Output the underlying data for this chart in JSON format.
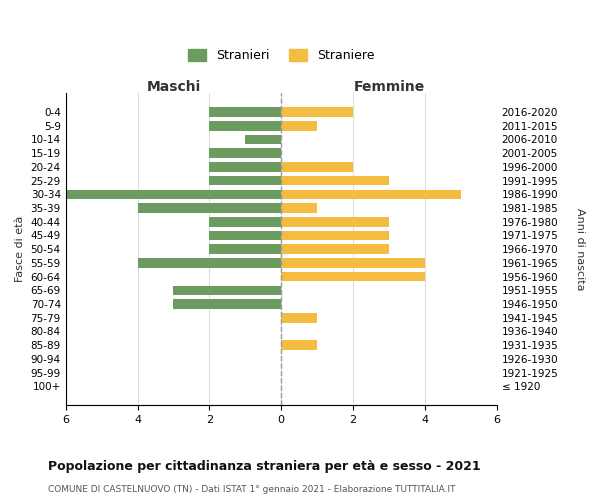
{
  "age_groups": [
    "100+",
    "95-99",
    "90-94",
    "85-89",
    "80-84",
    "75-79",
    "70-74",
    "65-69",
    "60-64",
    "55-59",
    "50-54",
    "45-49",
    "40-44",
    "35-39",
    "30-34",
    "25-29",
    "20-24",
    "15-19",
    "10-14",
    "5-9",
    "0-4"
  ],
  "birth_years": [
    "≤ 1920",
    "1921-1925",
    "1926-1930",
    "1931-1935",
    "1936-1940",
    "1941-1945",
    "1946-1950",
    "1951-1955",
    "1956-1960",
    "1961-1965",
    "1966-1970",
    "1971-1975",
    "1976-1980",
    "1981-1985",
    "1986-1990",
    "1991-1995",
    "1996-2000",
    "2001-2005",
    "2006-2010",
    "2011-2015",
    "2016-2020"
  ],
  "maschi": [
    0,
    0,
    0,
    0,
    0,
    0,
    3,
    3,
    0,
    4,
    2,
    2,
    2,
    4,
    6,
    2,
    2,
    2,
    1,
    2,
    2
  ],
  "femmine": [
    0,
    0,
    0,
    1,
    0,
    1,
    0,
    0,
    4,
    4,
    3,
    3,
    3,
    1,
    5,
    3,
    2,
    0,
    0,
    1,
    2
  ],
  "color_maschi": "#6b9b5e",
  "color_femmine": "#f5bc42",
  "title": "Popolazione per cittadinanza straniera per età e sesso - 2021",
  "subtitle": "COMUNE DI CASTELNUOVO (TN) - Dati ISTAT 1° gennaio 2021 - Elaborazione TUTTITALIA.IT",
  "legend_stranieri": "Stranieri",
  "legend_straniere": "Straniere",
  "xlabel_left": "Maschi",
  "xlabel_right": "Femmine",
  "ylabel_left": "Fasce di età",
  "ylabel_right": "Anni di nascita",
  "xlim": 6,
  "background_color": "#ffffff",
  "grid_color": "#dddddd"
}
